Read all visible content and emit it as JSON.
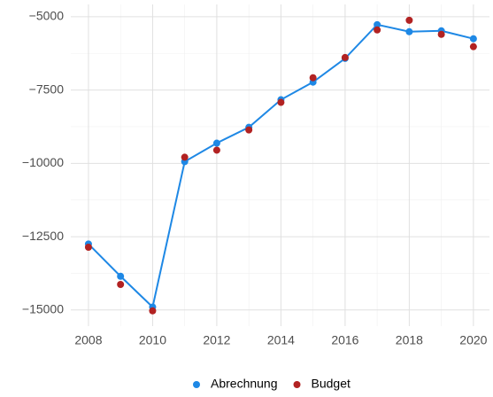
{
  "chart_data": {
    "type": "line",
    "x": [
      2008,
      2009,
      2010,
      2011,
      2012,
      2013,
      2014,
      2015,
      2016,
      2017,
      2018,
      2019,
      2020
    ],
    "series": [
      {
        "name": "Abrechnung",
        "color": "#1e88e5",
        "line": true,
        "values": [
          -12750,
          -13850,
          -14900,
          -9940,
          -9310,
          -8770,
          -7830,
          -7230,
          -6420,
          -5270,
          -5510,
          -5480,
          -5750
        ]
      },
      {
        "name": "Budget",
        "color": "#b22222",
        "line": false,
        "values": [
          -12860,
          -14130,
          -15030,
          -9790,
          -9550,
          -8860,
          -7920,
          -7080,
          -6390,
          -5450,
          -5120,
          -5600,
          -6020
        ]
      }
    ],
    "xlim": [
      2007.45,
      2020.5
    ],
    "xticks": [
      2008,
      2010,
      2012,
      2014,
      2016,
      2018,
      2020
    ],
    "ylim": [
      -15550,
      -4580
    ],
    "yticks": [
      {
        "value": -15000,
        "label": "−15000"
      },
      {
        "value": -12500,
        "label": "−12500"
      },
      {
        "value": -10000,
        "label": "−10000"
      },
      {
        "value": -7500,
        "label": "−7500"
      },
      {
        "value": -5000,
        "label": "−5000"
      }
    ],
    "grid": true,
    "legend": "bottom"
  }
}
